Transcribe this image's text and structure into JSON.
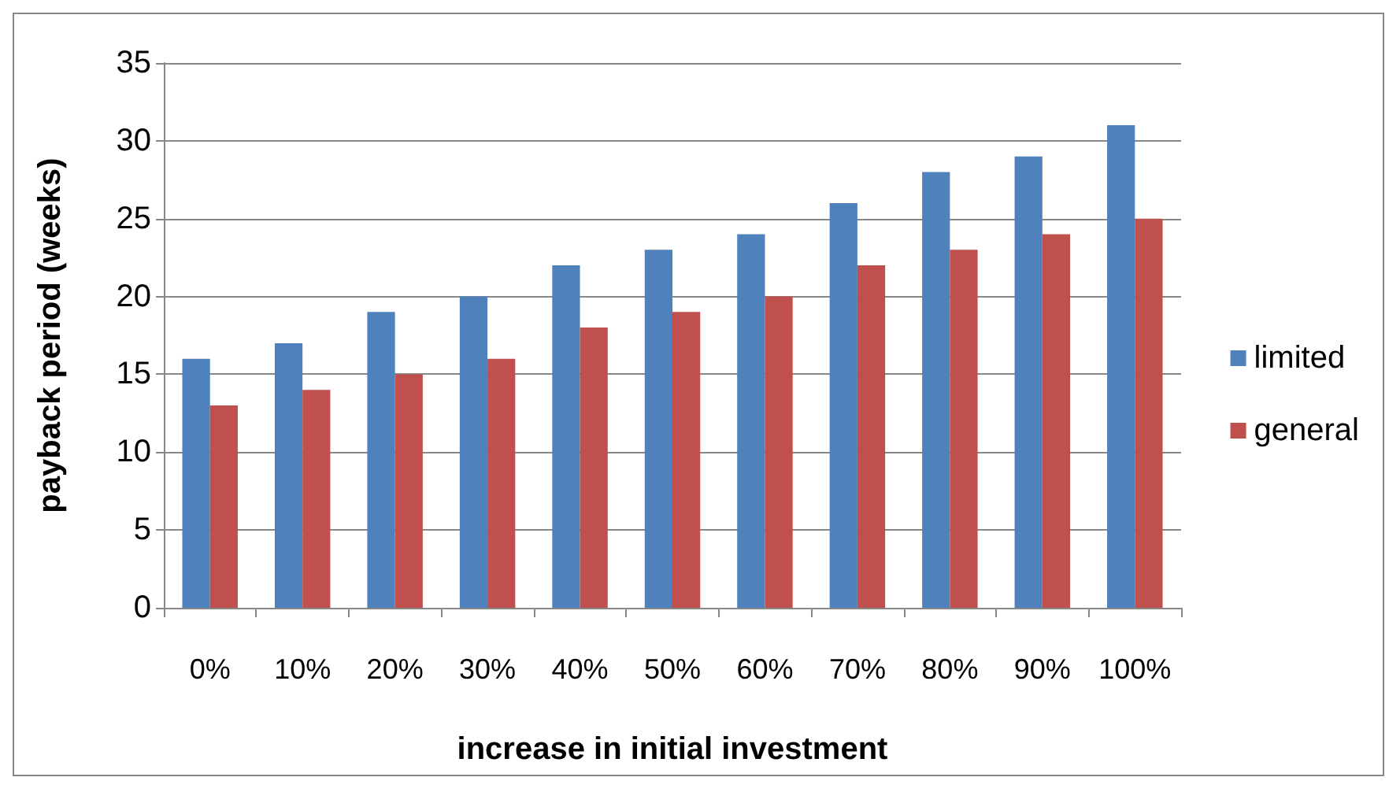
{
  "chart_data": {
    "type": "bar",
    "xlabel": "increase in initial investment",
    "ylabel": "payback period (weeks)",
    "categories": [
      "0%",
      "10%",
      "20%",
      "30%",
      "40%",
      "50%",
      "60%",
      "70%",
      "80%",
      "90%",
      "100%"
    ],
    "series": [
      {
        "name": "limited",
        "color": "#4f81bd",
        "values": [
          16,
          17,
          19,
          20,
          22,
          23,
          24,
          26,
          28,
          29,
          31
        ]
      },
      {
        "name": "general",
        "color": "#c0504d",
        "values": [
          13,
          14,
          15,
          16,
          18,
          19,
          20,
          22,
          23,
          24,
          25
        ]
      }
    ],
    "ylim": [
      0,
      35
    ],
    "yticks": [
      0,
      5,
      10,
      15,
      20,
      25,
      30,
      35
    ],
    "grid": "y",
    "legend": "right"
  }
}
